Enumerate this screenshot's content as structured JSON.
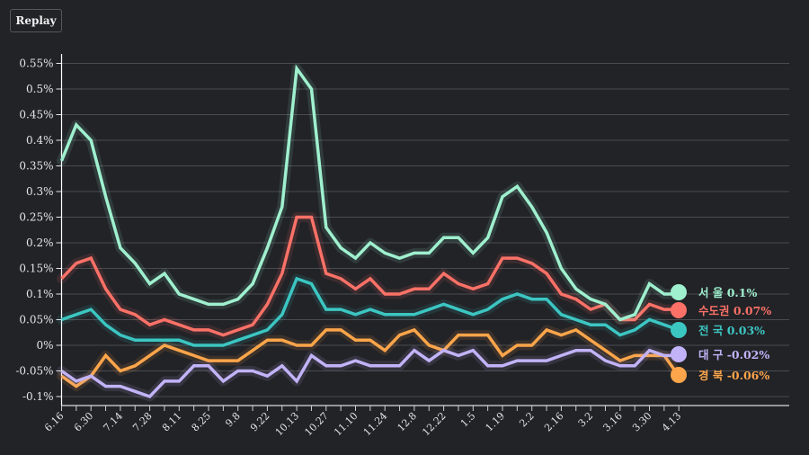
{
  "controls": {
    "replay_label": "Replay"
  },
  "chart_data": {
    "type": "line",
    "title": "",
    "xlabel": "",
    "ylabel": "",
    "ylim": [
      -0.1,
      0.55
    ],
    "y_ticks": [
      -0.1,
      -0.05,
      0,
      0.05,
      0.1,
      0.15,
      0.2,
      0.25,
      0.3,
      0.35,
      0.4,
      0.45,
      0.5,
      0.55
    ],
    "y_tick_labels": [
      "-0.1%",
      "-0.05%",
      "0%",
      "0.05%",
      "0.1%",
      "0.15%",
      "0.2%",
      "0.25%",
      "0.3%",
      "0.35%",
      "0.4%",
      "0.45%",
      "0.5%",
      "0.55%"
    ],
    "grid": true,
    "x": [
      "6.16",
      "6.23",
      "6.30",
      "7.7",
      "7.14",
      "7.21",
      "7.28",
      "8.4",
      "8.11",
      "8.18",
      "8.25",
      "9.1",
      "9.8",
      "9.15",
      "9.22",
      "9.29",
      "10.13",
      "10.20",
      "10.27",
      "11.3",
      "11.10",
      "11.17",
      "11.24",
      "12.1",
      "12.8",
      "12.15",
      "12.22",
      "12.29",
      "1.5",
      "1.12",
      "1.19",
      "1.26",
      "2.2",
      "2.9",
      "2.16",
      "2.23",
      "3.2",
      "3.9",
      "3.16",
      "3.23",
      "3.30",
      "4.6",
      "4.13"
    ],
    "x_tick_labels": [
      "6.16",
      "6.30",
      "7.14",
      "7.28",
      "8.11",
      "8.25",
      "9.8",
      "9.22",
      "10.13",
      "10.27",
      "11.10",
      "11.24",
      "12.8",
      "12.22",
      "1.5",
      "1.19",
      "2.2",
      "2.16",
      "3.2",
      "3.16",
      "3.30",
      "4.13"
    ],
    "legend_placement": "right-end-of-lines",
    "series": [
      {
        "name": "서 울",
        "final_label": "0.1%",
        "color": "#9ff0cf",
        "values": [
          0.36,
          0.43,
          0.4,
          0.29,
          0.19,
          0.16,
          0.12,
          0.14,
          0.1,
          0.09,
          0.08,
          0.08,
          0.09,
          0.12,
          0.19,
          0.27,
          0.54,
          0.5,
          0.23,
          0.19,
          0.17,
          0.2,
          0.18,
          0.17,
          0.18,
          0.18,
          0.21,
          0.21,
          0.18,
          0.21,
          0.29,
          0.31,
          0.27,
          0.22,
          0.15,
          0.11,
          0.09,
          0.08,
          0.05,
          0.06,
          0.12,
          0.1,
          0.1
        ]
      },
      {
        "name": "수도권",
        "final_label": "0.07%",
        "color": "#fb7167",
        "values": [
          0.13,
          0.16,
          0.17,
          0.11,
          0.07,
          0.06,
          0.04,
          0.05,
          0.04,
          0.03,
          0.03,
          0.02,
          0.03,
          0.04,
          0.08,
          0.14,
          0.25,
          0.25,
          0.14,
          0.13,
          0.11,
          0.13,
          0.1,
          0.1,
          0.11,
          0.11,
          0.14,
          0.12,
          0.11,
          0.12,
          0.17,
          0.17,
          0.16,
          0.14,
          0.1,
          0.09,
          0.07,
          0.08,
          0.05,
          0.05,
          0.08,
          0.07,
          0.07
        ]
      },
      {
        "name": "전 국",
        "final_label": "0.03%",
        "color": "#3cc6c2",
        "values": [
          0.05,
          0.06,
          0.07,
          0.04,
          0.02,
          0.01,
          0.01,
          0.01,
          0.01,
          0.0,
          0.0,
          0.0,
          0.01,
          0.02,
          0.03,
          0.06,
          0.13,
          0.12,
          0.07,
          0.07,
          0.06,
          0.07,
          0.06,
          0.06,
          0.06,
          0.07,
          0.08,
          0.07,
          0.06,
          0.07,
          0.09,
          0.1,
          0.09,
          0.09,
          0.06,
          0.05,
          0.04,
          0.04,
          0.02,
          0.03,
          0.05,
          0.04,
          0.03
        ]
      },
      {
        "name": "대 구",
        "final_label": "-0.02%",
        "color": "#c2b3f8",
        "values": [
          -0.05,
          -0.07,
          -0.06,
          -0.08,
          -0.08,
          -0.09,
          -0.1,
          -0.07,
          -0.07,
          -0.04,
          -0.04,
          -0.07,
          -0.05,
          -0.05,
          -0.06,
          -0.04,
          -0.07,
          -0.02,
          -0.04,
          -0.04,
          -0.03,
          -0.04,
          -0.04,
          -0.04,
          -0.01,
          -0.03,
          -0.01,
          -0.02,
          -0.01,
          -0.04,
          -0.04,
          -0.03,
          -0.03,
          -0.03,
          -0.02,
          -0.01,
          -0.01,
          -0.03,
          -0.04,
          -0.04,
          -0.01,
          -0.02,
          -0.02
        ]
      },
      {
        "name": "경 북",
        "final_label": "-0.06%",
        "color": "#fca54a",
        "values": [
          -0.06,
          -0.08,
          -0.06,
          -0.02,
          -0.05,
          -0.04,
          -0.02,
          0.0,
          -0.01,
          -0.02,
          -0.03,
          -0.03,
          -0.03,
          -0.01,
          0.01,
          0.01,
          0.0,
          0.0,
          0.03,
          0.03,
          0.01,
          0.01,
          -0.01,
          0.02,
          0.03,
          0.0,
          -0.01,
          0.02,
          0.02,
          0.02,
          -0.02,
          0.0,
          0.0,
          0.03,
          0.02,
          0.03,
          0.01,
          -0.01,
          -0.03,
          -0.02,
          -0.02,
          -0.02,
          -0.06
        ]
      }
    ]
  }
}
